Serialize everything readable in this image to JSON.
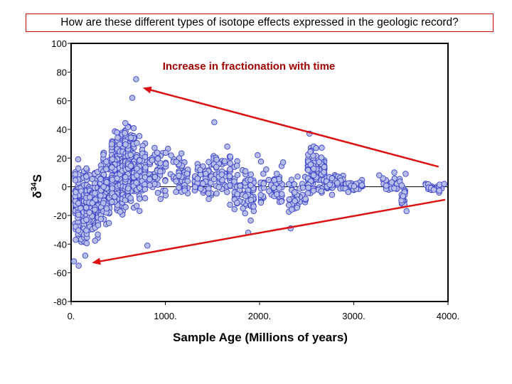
{
  "header": {
    "title": "How are these different types of isotope effects expressed in the geologic record?"
  },
  "colors": {
    "point_fill": "#b7bde9",
    "point_stroke": "#3a42c8",
    "trend_arrow": "#dd1111",
    "annotation": "#a00000",
    "title_border": "#cc0000"
  },
  "chart_data": {
    "type": "scatter",
    "title": "",
    "xlabel": "Sample Age (Millions of years)",
    "ylabel_main": "δ",
    "ylabel_sup": "34",
    "ylabel_tail": "S",
    "xlim": [
      0,
      4000
    ],
    "ylim": [
      -80,
      100
    ],
    "x_ticks": [
      0,
      1000,
      2000,
      3000,
      4000
    ],
    "x_tick_labels": [
      "0.",
      "1000.",
      "2000.",
      "3000.",
      "4000."
    ],
    "y_ticks": [
      100,
      80,
      60,
      40,
      20,
      0,
      -20,
      -40,
      -60,
      -80
    ],
    "y_tick_labels": [
      "100",
      "80",
      "60",
      "40",
      "20",
      "0",
      "-20",
      "-40",
      "-60",
      "-80"
    ],
    "grid": false,
    "zero_line": true,
    "annotations": [
      {
        "text": "Increase in fractionation with time"
      }
    ],
    "trend_arrows": [
      {
        "from": [
          3900,
          14
        ],
        "to": [
          760,
          69
        ]
      },
      {
        "from": [
          3970,
          -9
        ],
        "to": [
          220,
          -53
        ]
      }
    ],
    "clusters": [
      {
        "x": [
          30,
          150
        ],
        "y": [
          -50,
          22
        ],
        "n": 140
      },
      {
        "x": [
          150,
          300
        ],
        "y": [
          -45,
          25
        ],
        "n": 120
      },
      {
        "x": [
          300,
          420
        ],
        "y": [
          -35,
          30
        ],
        "n": 110
      },
      {
        "x": [
          420,
          560
        ],
        "y": [
          -32,
          48
        ],
        "n": 180
      },
      {
        "x": [
          560,
          680
        ],
        "y": [
          -25,
          55
        ],
        "n": 140
      },
      {
        "x": [
          680,
          800
        ],
        "y": [
          -20,
          40
        ],
        "n": 60
      },
      {
        "x": [
          820,
          1100
        ],
        "y": [
          -12,
          35
        ],
        "n": 60
      },
      {
        "x": [
          1100,
          1250
        ],
        "y": [
          -10,
          25
        ],
        "n": 45
      },
      {
        "x": [
          1300,
          1500
        ],
        "y": [
          -15,
          30
        ],
        "n": 50
      },
      {
        "x": [
          1500,
          1700
        ],
        "y": [
          -20,
          42
        ],
        "n": 55
      },
      {
        "x": [
          1720,
          1950
        ],
        "y": [
          -30,
          25
        ],
        "n": 70
      },
      {
        "x": [
          2000,
          2250
        ],
        "y": [
          -22,
          22
        ],
        "n": 45
      },
      {
        "x": [
          2300,
          2500
        ],
        "y": [
          -28,
          18
        ],
        "n": 45
      },
      {
        "x": [
          2500,
          2700
        ],
        "y": [
          -10,
          32
        ],
        "n": 110
      },
      {
        "x": [
          2700,
          2900
        ],
        "y": [
          -8,
          12
        ],
        "n": 60
      },
      {
        "x": [
          2900,
          3100
        ],
        "y": [
          -5,
          8
        ],
        "n": 25
      },
      {
        "x": [
          3300,
          3500
        ],
        "y": [
          -4,
          8
        ],
        "n": 25
      },
      {
        "x": [
          3500,
          3550
        ],
        "y": [
          -17,
          5
        ],
        "n": 20
      },
      {
        "x": [
          3750,
          3950
        ],
        "y": [
          -5,
          5
        ],
        "n": 25
      }
    ],
    "points": [
      [
        30,
        -52
      ],
      [
        80,
        -55
      ],
      [
        150,
        -48
      ],
      [
        690,
        75
      ],
      [
        650,
        62
      ],
      [
        810,
        -41
      ],
      [
        1520,
        45
      ],
      [
        1880,
        -32
      ],
      [
        1980,
        22
      ],
      [
        2250,
        17
      ],
      [
        2330,
        -29
      ],
      [
        2530,
        37
      ],
      [
        2600,
        27
      ],
      [
        3560,
        -17
      ],
      [
        3550,
        9
      ],
      [
        3430,
        10
      ],
      [
        3270,
        8
      ],
      [
        3960,
        2
      ]
    ]
  }
}
